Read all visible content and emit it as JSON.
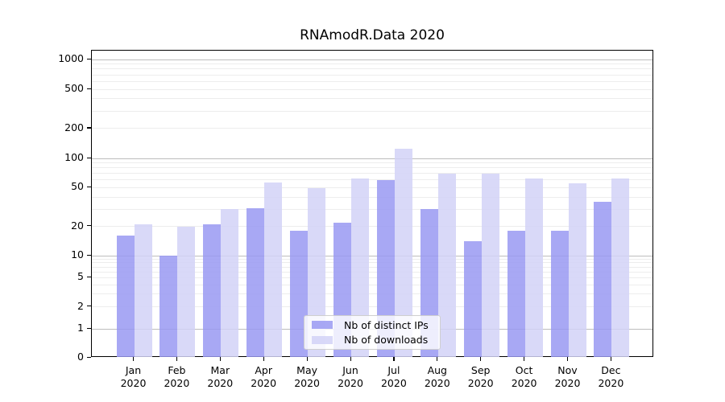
{
  "chart_data": {
    "type": "bar",
    "title": "RNAmodR.Data 2020",
    "categories": [
      "Jan 2020",
      "Feb 2020",
      "Mar 2020",
      "Apr 2020",
      "May 2020",
      "Jun 2020",
      "Jul 2020",
      "Aug 2020",
      "Sep 2020",
      "Oct 2020",
      "Nov 2020",
      "Dec 2020"
    ],
    "series": [
      {
        "name": "Nb of distinct IPs",
        "color": "#9999f2",
        "values": [
          16,
          10,
          21,
          31,
          18,
          22,
          60,
          30,
          14,
          18,
          18,
          36
        ]
      },
      {
        "name": "Nb of downloads",
        "color": "#d2d2f7",
        "values": [
          21,
          20,
          30,
          57,
          49,
          62,
          126,
          70,
          70,
          62,
          55,
          62
        ]
      }
    ],
    "yticks": [
      0,
      1,
      2,
      5,
      10,
      20,
      50,
      100,
      200,
      500,
      1000
    ],
    "ylim": [
      0,
      1400
    ],
    "yscale": "symlog",
    "grid": "horizontal-gridlines, major at 1/10/100/1000, log minors",
    "legend_position": "lower-center-inside"
  },
  "colors": {
    "axis": "#000000",
    "grid_major": "#bdbdbd",
    "grid_minor": "#ededed",
    "background": "#ffffff",
    "legend_border": "#cfcfcf"
  }
}
